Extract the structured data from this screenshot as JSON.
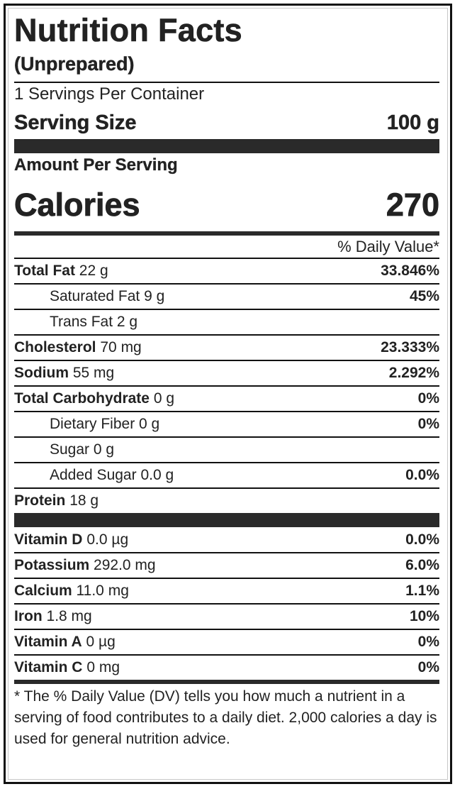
{
  "label": {
    "title": "Nutrition Facts",
    "subtitle": "(Unprepared)",
    "servings_per_container": "1 Servings Per Container",
    "serving_size_label": "Serving Size",
    "serving_size_value": "100 g",
    "amount_per_serving": "Amount Per Serving",
    "calories_label": "Calories",
    "calories_value": "270",
    "daily_value_header": "% Daily Value*"
  },
  "nutrients": [
    {
      "name": "Total Fat",
      "amount": "22 g",
      "dv": "33.846%",
      "indent": false
    },
    {
      "name": "Saturated Fat",
      "amount": "9 g",
      "dv": "45%",
      "indent": true
    },
    {
      "name": "Trans Fat",
      "amount": "2 g",
      "dv": "",
      "indent": true
    },
    {
      "name": "Cholesterol",
      "amount": "70 mg",
      "dv": "23.333%",
      "indent": false
    },
    {
      "name": "Sodium",
      "amount": "55 mg",
      "dv": "2.292%",
      "indent": false
    },
    {
      "name": "Total Carbohydrate",
      "amount": "0 g",
      "dv": "0%",
      "indent": false
    },
    {
      "name": "Dietary Fiber",
      "amount": "0 g",
      "dv": "0%",
      "indent": true
    },
    {
      "name": "Sugar",
      "amount": "0 g",
      "dv": "",
      "indent": true
    },
    {
      "name": "Added Sugar",
      "amount": "0.0 g",
      "dv": "0.0%",
      "indent": true
    },
    {
      "name": "Protein",
      "amount": "18 g",
      "dv": "",
      "indent": false
    }
  ],
  "vitamins": [
    {
      "name": "Vitamin D",
      "amount": "0.0 µg",
      "dv": "0.0%"
    },
    {
      "name": "Potassium",
      "amount": "292.0 mg",
      "dv": "6.0%"
    },
    {
      "name": "Calcium",
      "amount": "11.0 mg",
      "dv": "1.1%"
    },
    {
      "name": "Iron",
      "amount": "1.8 mg",
      "dv": "10%"
    },
    {
      "name": "Vitamin A",
      "amount": "0 µg",
      "dv": "0%"
    },
    {
      "name": "Vitamin C",
      "amount": "0 mg",
      "dv": "0%"
    }
  ],
  "footer": {
    "note": "* The % Daily Value (DV) tells you how much a nutrient in a serving of food contributes to a daily diet. 2,000 calories a day is used for general nutrition advice."
  }
}
